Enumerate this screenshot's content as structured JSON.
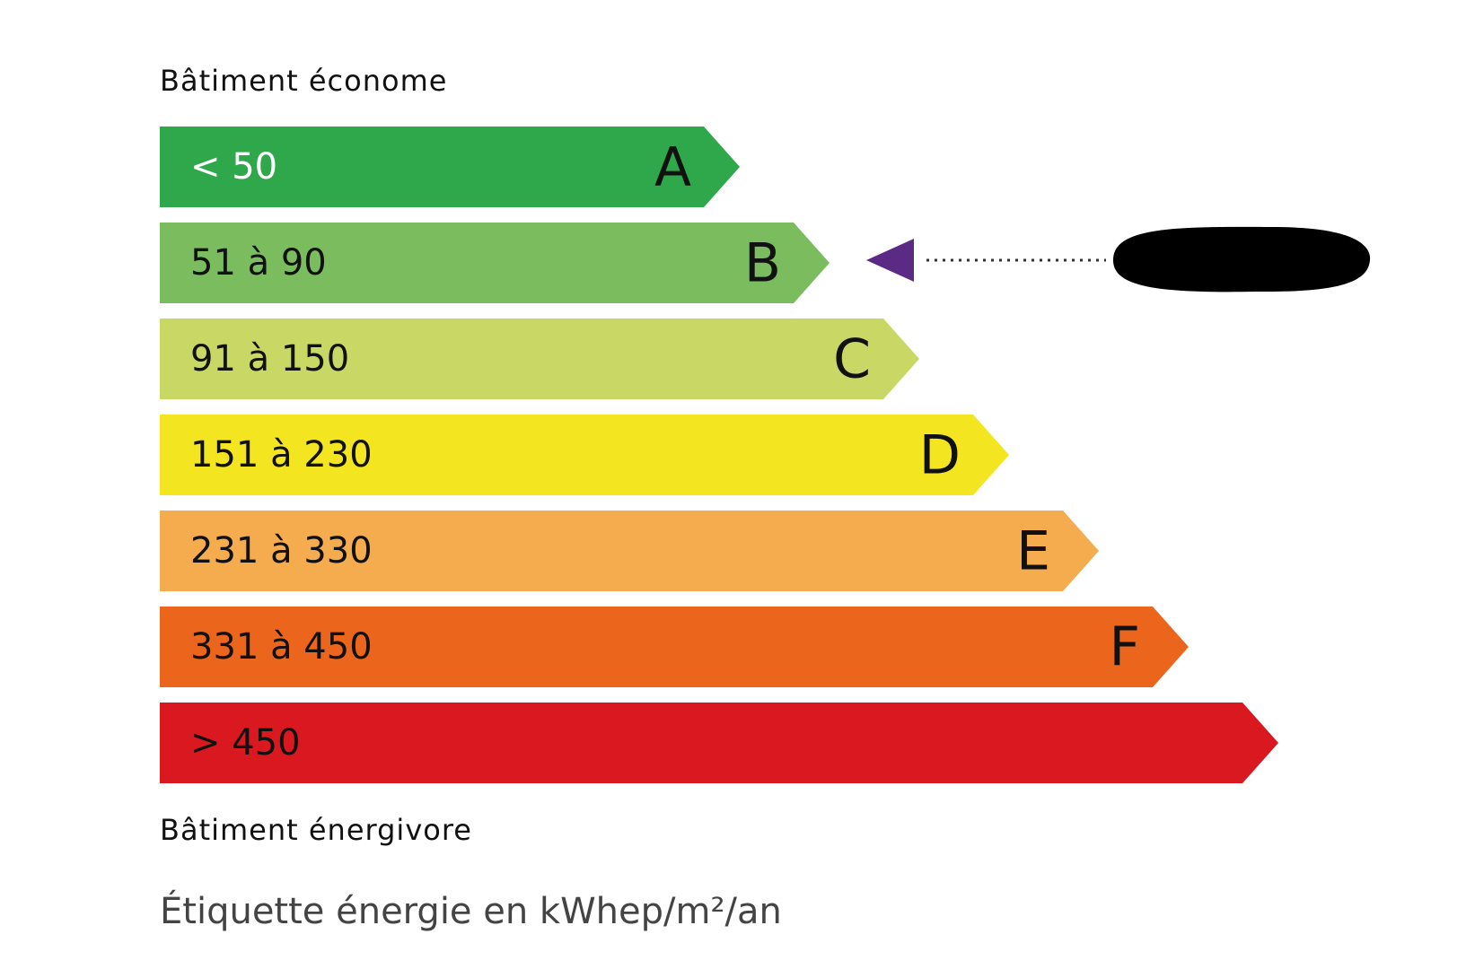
{
  "header": {
    "title": "Bâtiment économe"
  },
  "bands": [
    {
      "range": "< 50",
      "letter": "A",
      "color": "#2ea84a",
      "text_color": "#ffffff"
    },
    {
      "range": "51 à 90",
      "letter": "B",
      "color": "#7bbd5e",
      "text_color": "#111111"
    },
    {
      "range": "91 à 150",
      "letter": "C",
      "color": "#c9d864",
      "text_color": "#111111"
    },
    {
      "range": "151 à 230",
      "letter": "D",
      "color": "#f3e51f",
      "text_color": "#111111"
    },
    {
      "range": "231 à 330",
      "letter": "E",
      "color": "#f4ac4f",
      "text_color": "#111111"
    },
    {
      "range": "331 à 450",
      "letter": "F",
      "color": "#eb661c",
      "text_color": "#111111"
    },
    {
      "range": "> 450",
      "color": "#d9191f",
      "text_color": "#111111"
    }
  ],
  "footer": {
    "title": "Bâtiment énergivore",
    "caption": "Étiquette énergie en kWhep/m²/an"
  }
}
